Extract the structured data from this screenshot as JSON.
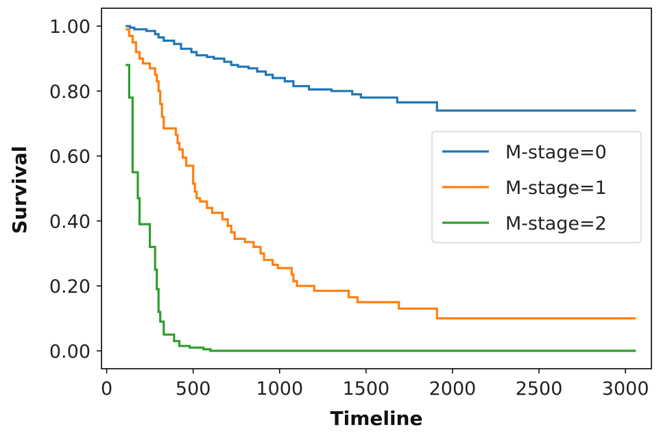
{
  "chart_data": {
    "type": "line",
    "line_style": "step",
    "title": "",
    "xlabel": "Timeline",
    "ylabel": "Survival",
    "xlim": [
      -30,
      3150
    ],
    "ylim": [
      -0.055,
      1.055
    ],
    "x_ticks": [
      0,
      500,
      1000,
      1500,
      2000,
      2500,
      3000
    ],
    "y_ticks": [
      0,
      0.2,
      0.4,
      0.6,
      0.8,
      1.0
    ],
    "x_tick_labels": [
      "0",
      "500",
      "1000",
      "1500",
      "2000",
      "2500",
      "3000"
    ],
    "y_tick_labels": [
      "0.00",
      "0.20",
      "0.40",
      "0.60",
      "0.80",
      "1.00"
    ],
    "grid": false,
    "legend_position": "center-right",
    "series": [
      {
        "name": "M-stage=0",
        "color": "#1f77b4",
        "points": [
          [
            110,
            1.0
          ],
          [
            135,
            0.995
          ],
          [
            160,
            0.99
          ],
          [
            230,
            0.985
          ],
          [
            280,
            0.975
          ],
          [
            300,
            0.965
          ],
          [
            330,
            0.955
          ],
          [
            390,
            0.945
          ],
          [
            430,
            0.93
          ],
          [
            490,
            0.92
          ],
          [
            520,
            0.91
          ],
          [
            580,
            0.905
          ],
          [
            620,
            0.9
          ],
          [
            680,
            0.89
          ],
          [
            720,
            0.88
          ],
          [
            760,
            0.875
          ],
          [
            820,
            0.87
          ],
          [
            870,
            0.86
          ],
          [
            920,
            0.85
          ],
          [
            960,
            0.84
          ],
          [
            1030,
            0.83
          ],
          [
            1080,
            0.815
          ],
          [
            1170,
            0.805
          ],
          [
            1300,
            0.8
          ],
          [
            1420,
            0.79
          ],
          [
            1470,
            0.78
          ],
          [
            1680,
            0.765
          ],
          [
            1910,
            0.74
          ],
          [
            3060,
            0.74
          ]
        ]
      },
      {
        "name": "M-stage=1",
        "color": "#ff7f0e",
        "points": [
          [
            110,
            0.99
          ],
          [
            130,
            0.97
          ],
          [
            150,
            0.95
          ],
          [
            170,
            0.92
          ],
          [
            190,
            0.9
          ],
          [
            210,
            0.885
          ],
          [
            250,
            0.87
          ],
          [
            280,
            0.85
          ],
          [
            290,
            0.83
          ],
          [
            300,
            0.8
          ],
          [
            310,
            0.76
          ],
          [
            320,
            0.72
          ],
          [
            330,
            0.685
          ],
          [
            400,
            0.665
          ],
          [
            410,
            0.64
          ],
          [
            420,
            0.62
          ],
          [
            440,
            0.595
          ],
          [
            460,
            0.57
          ],
          [
            500,
            0.515
          ],
          [
            510,
            0.49
          ],
          [
            520,
            0.47
          ],
          [
            540,
            0.46
          ],
          [
            580,
            0.44
          ],
          [
            610,
            0.425
          ],
          [
            670,
            0.405
          ],
          [
            700,
            0.385
          ],
          [
            720,
            0.365
          ],
          [
            740,
            0.345
          ],
          [
            800,
            0.335
          ],
          [
            850,
            0.32
          ],
          [
            890,
            0.3
          ],
          [
            910,
            0.28
          ],
          [
            960,
            0.265
          ],
          [
            990,
            0.255
          ],
          [
            1070,
            0.235
          ],
          [
            1080,
            0.215
          ],
          [
            1100,
            0.2
          ],
          [
            1200,
            0.185
          ],
          [
            1400,
            0.165
          ],
          [
            1450,
            0.15
          ],
          [
            1690,
            0.13
          ],
          [
            1910,
            0.1
          ],
          [
            3060,
            0.1
          ]
        ]
      },
      {
        "name": "M-stage=2",
        "color": "#2ca02c",
        "points": [
          [
            110,
            0.88
          ],
          [
            130,
            0.78
          ],
          [
            150,
            0.55
          ],
          [
            180,
            0.47
          ],
          [
            190,
            0.39
          ],
          [
            250,
            0.32
          ],
          [
            280,
            0.25
          ],
          [
            290,
            0.19
          ],
          [
            300,
            0.12
          ],
          [
            310,
            0.09
          ],
          [
            330,
            0.05
          ],
          [
            390,
            0.03
          ],
          [
            420,
            0.015
          ],
          [
            480,
            0.01
          ],
          [
            560,
            0.005
          ],
          [
            600,
            0.0
          ],
          [
            3060,
            0.0
          ]
        ]
      }
    ]
  }
}
